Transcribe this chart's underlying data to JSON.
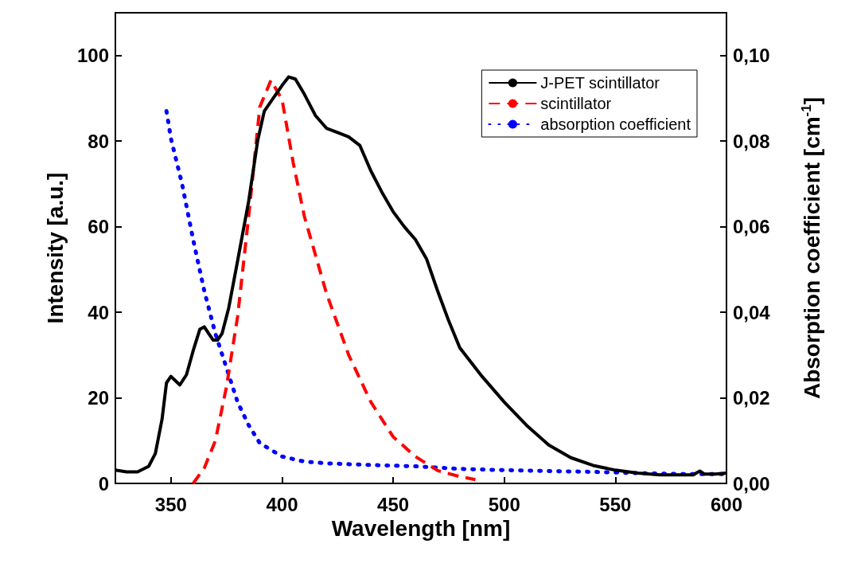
{
  "chart_data": {
    "type": "line",
    "xlabel": "Wavelength [nm]",
    "ylabel": "Intensity [a.u.]",
    "y2label": "Absorption coefficient [cm$^{-1}$]",
    "xlim": [
      325,
      600
    ],
    "xticks": [
      350,
      400,
      450,
      500,
      550,
      600
    ],
    "ylim": [
      0,
      110
    ],
    "yticks": [
      0,
      20,
      40,
      60,
      80,
      100
    ],
    "y2lim": [
      0,
      0.11
    ],
    "y2ticks": [
      {
        "value": 0,
        "label": "0,00"
      },
      {
        "value": 0.02,
        "label": "0,02"
      },
      {
        "value": 0.04,
        "label": "0,04"
      },
      {
        "value": 0.06,
        "label": "0,06"
      },
      {
        "value": 0.08,
        "label": "0,08"
      },
      {
        "value": 0.1,
        "label": "0,10"
      }
    ],
    "legend": "top right",
    "marker": "none",
    "series": [
      {
        "name": "J-PET scintillator",
        "color": "#000000",
        "line_style": "solid",
        "x": [
          325,
          330,
          335,
          340,
          343,
          346,
          348,
          350,
          352,
          354,
          357,
          360,
          363,
          365,
          367,
          369,
          371,
          373,
          376,
          380,
          385,
          389,
          392,
          396,
          400,
          403,
          406,
          410,
          415,
          420,
          425,
          430,
          435,
          440,
          445,
          450,
          455,
          460,
          465,
          470,
          475,
          480,
          490,
          500,
          510,
          520,
          530,
          540,
          550,
          560,
          570,
          580,
          585,
          588,
          590,
          595,
          600
        ],
        "values": [
          3.1,
          2.7,
          2.7,
          4,
          7,
          15,
          23.5,
          25,
          24,
          23,
          25.4,
          31,
          36,
          36.6,
          35,
          33.5,
          33.5,
          35,
          41,
          52,
          66,
          80,
          87,
          90,
          93,
          95,
          94.5,
          91,
          86,
          83,
          82,
          81,
          79,
          73,
          68,
          63.5,
          60,
          57,
          52.5,
          45,
          38,
          31.7,
          25,
          19,
          13.6,
          9,
          6,
          4.2,
          3.1,
          2.4,
          2,
          2,
          2,
          2.9,
          2.2,
          2.2,
          2.4
        ]
      },
      {
        "name": "scintillator",
        "color": "#ff0000",
        "line_style": "dashed",
        "x": [
          360,
          365,
          370,
          375,
          380,
          385,
          390,
          395,
          400,
          405,
          410,
          420,
          430,
          440,
          450,
          460,
          470,
          480,
          487
        ],
        "values": [
          0,
          3.6,
          10,
          22.6,
          39,
          62.5,
          88,
          94.2,
          89.7,
          75,
          62.5,
          44.4,
          30,
          19,
          10.9,
          6.3,
          3,
          1.6,
          0.9
        ]
      },
      {
        "name": "absorption coefficient",
        "color": "#0000ff",
        "line_style": "dotted",
        "axis": "y2",
        "x": [
          348,
          350,
          355,
          360,
          365,
          370,
          375,
          380,
          385,
          390,
          400,
          410,
          420,
          440,
          460,
          480,
          500,
          520,
          540,
          560,
          580,
          600
        ],
        "values": [
          0.087,
          0.0806,
          0.07,
          0.057,
          0.045,
          0.035,
          0.027,
          0.019,
          0.0136,
          0.0094,
          0.0063,
          0.0051,
          0.0047,
          0.0043,
          0.004,
          0.0034,
          0.0031,
          0.0029,
          0.0027,
          0.0024,
          0.0022,
          0.0022
        ]
      }
    ]
  }
}
